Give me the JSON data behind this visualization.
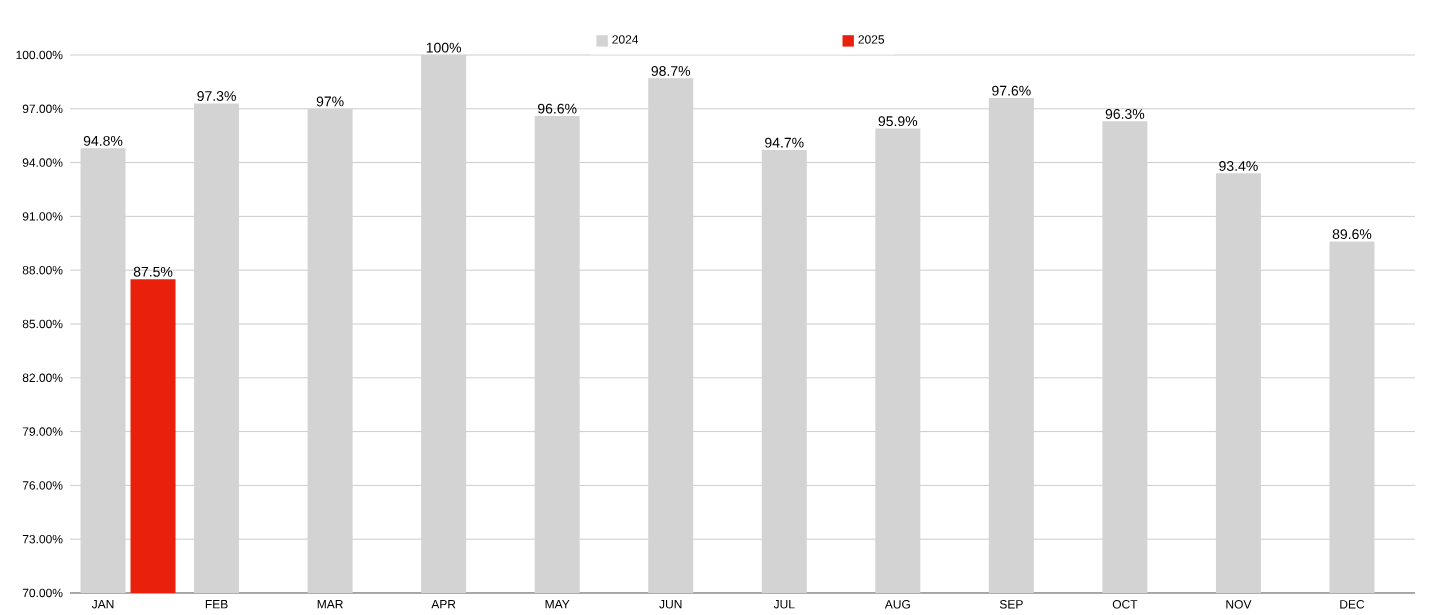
{
  "chart_data": {
    "type": "bar",
    "categories": [
      "JAN",
      "FEB",
      "MAR",
      "APR",
      "MAY",
      "JUN",
      "JUL",
      "AUG",
      "SEP",
      "OCT",
      "NOV",
      "DEC"
    ],
    "series": [
      {
        "name": "2024",
        "color": "#d3d3d3",
        "values": [
          94.8,
          97.3,
          97,
          100,
          96.6,
          98.7,
          94.7,
          95.9,
          97.6,
          96.3,
          93.4,
          89.6
        ],
        "value_labels": [
          "94.8%",
          "97.3%",
          "97%",
          "100%",
          "96.6%",
          "98.7%",
          "94.7%",
          "95.9%",
          "97.6%",
          "96.3%",
          "93.4%",
          "89.6%"
        ]
      },
      {
        "name": "2025",
        "color": "#e8200c",
        "values": [
          87.5,
          null,
          null,
          null,
          null,
          null,
          null,
          null,
          null,
          null,
          null,
          null
        ],
        "value_labels": [
          "87.5%",
          null,
          null,
          null,
          null,
          null,
          null,
          null,
          null,
          null,
          null,
          null
        ]
      }
    ],
    "ylim": [
      70,
      100
    ],
    "yticks": [
      {
        "value": 70,
        "label": "70.00%"
      },
      {
        "value": 73,
        "label": "73.00%"
      },
      {
        "value": 76,
        "label": "76.00%"
      },
      {
        "value": 79,
        "label": "79.00%"
      },
      {
        "value": 82,
        "label": "82.00%"
      },
      {
        "value": 85,
        "label": "85.00%"
      },
      {
        "value": 88,
        "label": "88.00%"
      },
      {
        "value": 91,
        "label": "91.00%"
      },
      {
        "value": 94,
        "label": "94.00%"
      },
      {
        "value": 97,
        "label": "97.00%"
      },
      {
        "value": 100,
        "label": "100.00%"
      }
    ],
    "grid": "y",
    "legend": "top"
  }
}
